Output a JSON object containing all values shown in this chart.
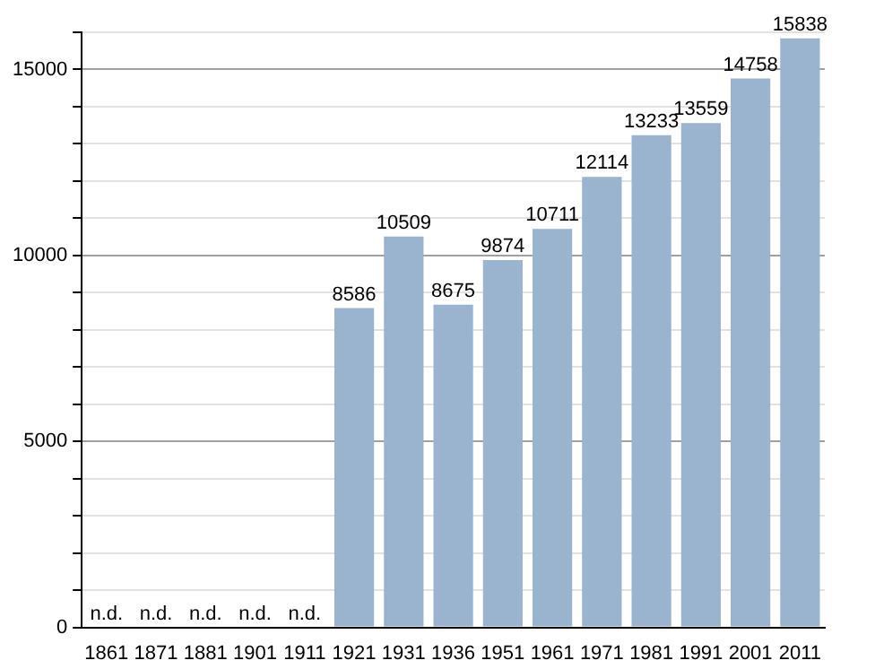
{
  "chart_data": {
    "type": "bar",
    "categories": [
      "1861",
      "1871",
      "1881",
      "1901",
      "1911",
      "1921",
      "1931",
      "1936",
      "1951",
      "1961",
      "1971",
      "1981",
      "1991",
      "2001",
      "2011"
    ],
    "values": [
      null,
      null,
      null,
      null,
      null,
      8586,
      10509,
      8675,
      9874,
      10711,
      12114,
      13233,
      13559,
      14758,
      15838
    ],
    "value_labels": [
      "n.d.",
      "n.d.",
      "n.d.",
      "n.d.",
      "n.d.",
      "8586",
      "10509",
      "8675",
      "9874",
      "10711",
      "12114",
      "13233",
      "13559",
      "14758",
      "15838"
    ],
    "color": "#9ab3cf",
    "ylim": [
      0,
      16000
    ],
    "yticks": [
      0,
      {
        "value": 1000,
        "label": null
      },
      {
        "value": 2000,
        "label": null
      },
      {
        "value": 3000,
        "label": null
      },
      {
        "value": 4000,
        "label": null
      },
      5000,
      {
        "value": 6000,
        "label": null
      },
      {
        "value": 7000,
        "label": null
      },
      {
        "value": 8000,
        "label": null
      },
      {
        "value": 9000,
        "label": null
      },
      10000,
      {
        "value": 11000,
        "label": null
      },
      {
        "value": 12000,
        "label": null
      },
      {
        "value": 13000,
        "label": null
      },
      {
        "value": 14000,
        "label": null
      },
      15000,
      {
        "value": 16000,
        "label": null
      }
    ],
    "grid": "y",
    "legend": false
  }
}
